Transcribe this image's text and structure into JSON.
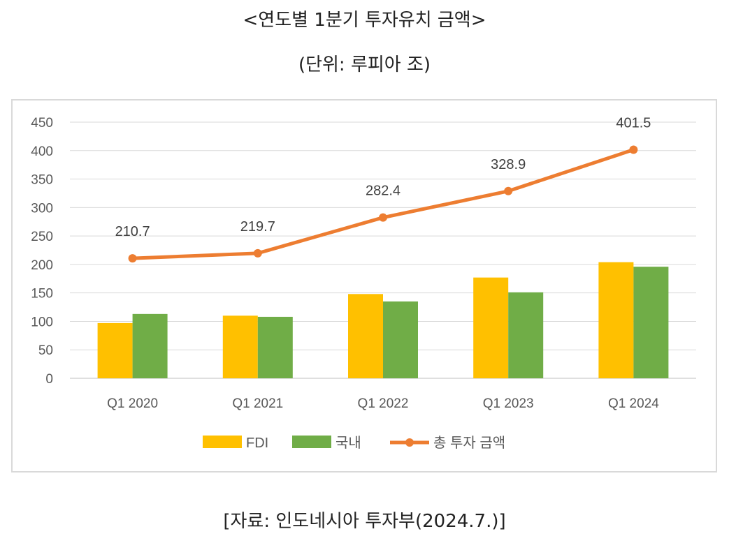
{
  "header": {
    "title": "<연도별 1분기 투자유치 금액>",
    "subtitle": "(단위: 루피아 조)"
  },
  "footer": {
    "source": "[자료: 인도네시아 투자부(2024.7.)]"
  },
  "chart_data": {
    "type": "bar",
    "categories": [
      "Q1 2020",
      "Q1 2021",
      "Q1 2022",
      "Q1 2023",
      "Q1 2024"
    ],
    "series": [
      {
        "name": "FDI",
        "type": "bar",
        "color": "#ffc000",
        "values": [
          97,
          110,
          148,
          177,
          204
        ]
      },
      {
        "name": "국내",
        "type": "bar",
        "color": "#70ad47",
        "values": [
          113,
          108,
          135,
          151,
          196
        ]
      },
      {
        "name": "총 투자 금액",
        "type": "line",
        "color": "#ed7d31",
        "values": [
          210.7,
          219.7,
          282.4,
          328.9,
          401.5
        ],
        "data_labels": [
          "210.7",
          "219.7",
          "282.4",
          "328.9",
          "401.5"
        ]
      }
    ],
    "yticks": [
      "0",
      "50",
      "100",
      "150",
      "200",
      "250",
      "300",
      "350",
      "400",
      "450"
    ],
    "ylim": [
      0,
      450
    ],
    "grid": true,
    "legend_position": "bottom"
  }
}
